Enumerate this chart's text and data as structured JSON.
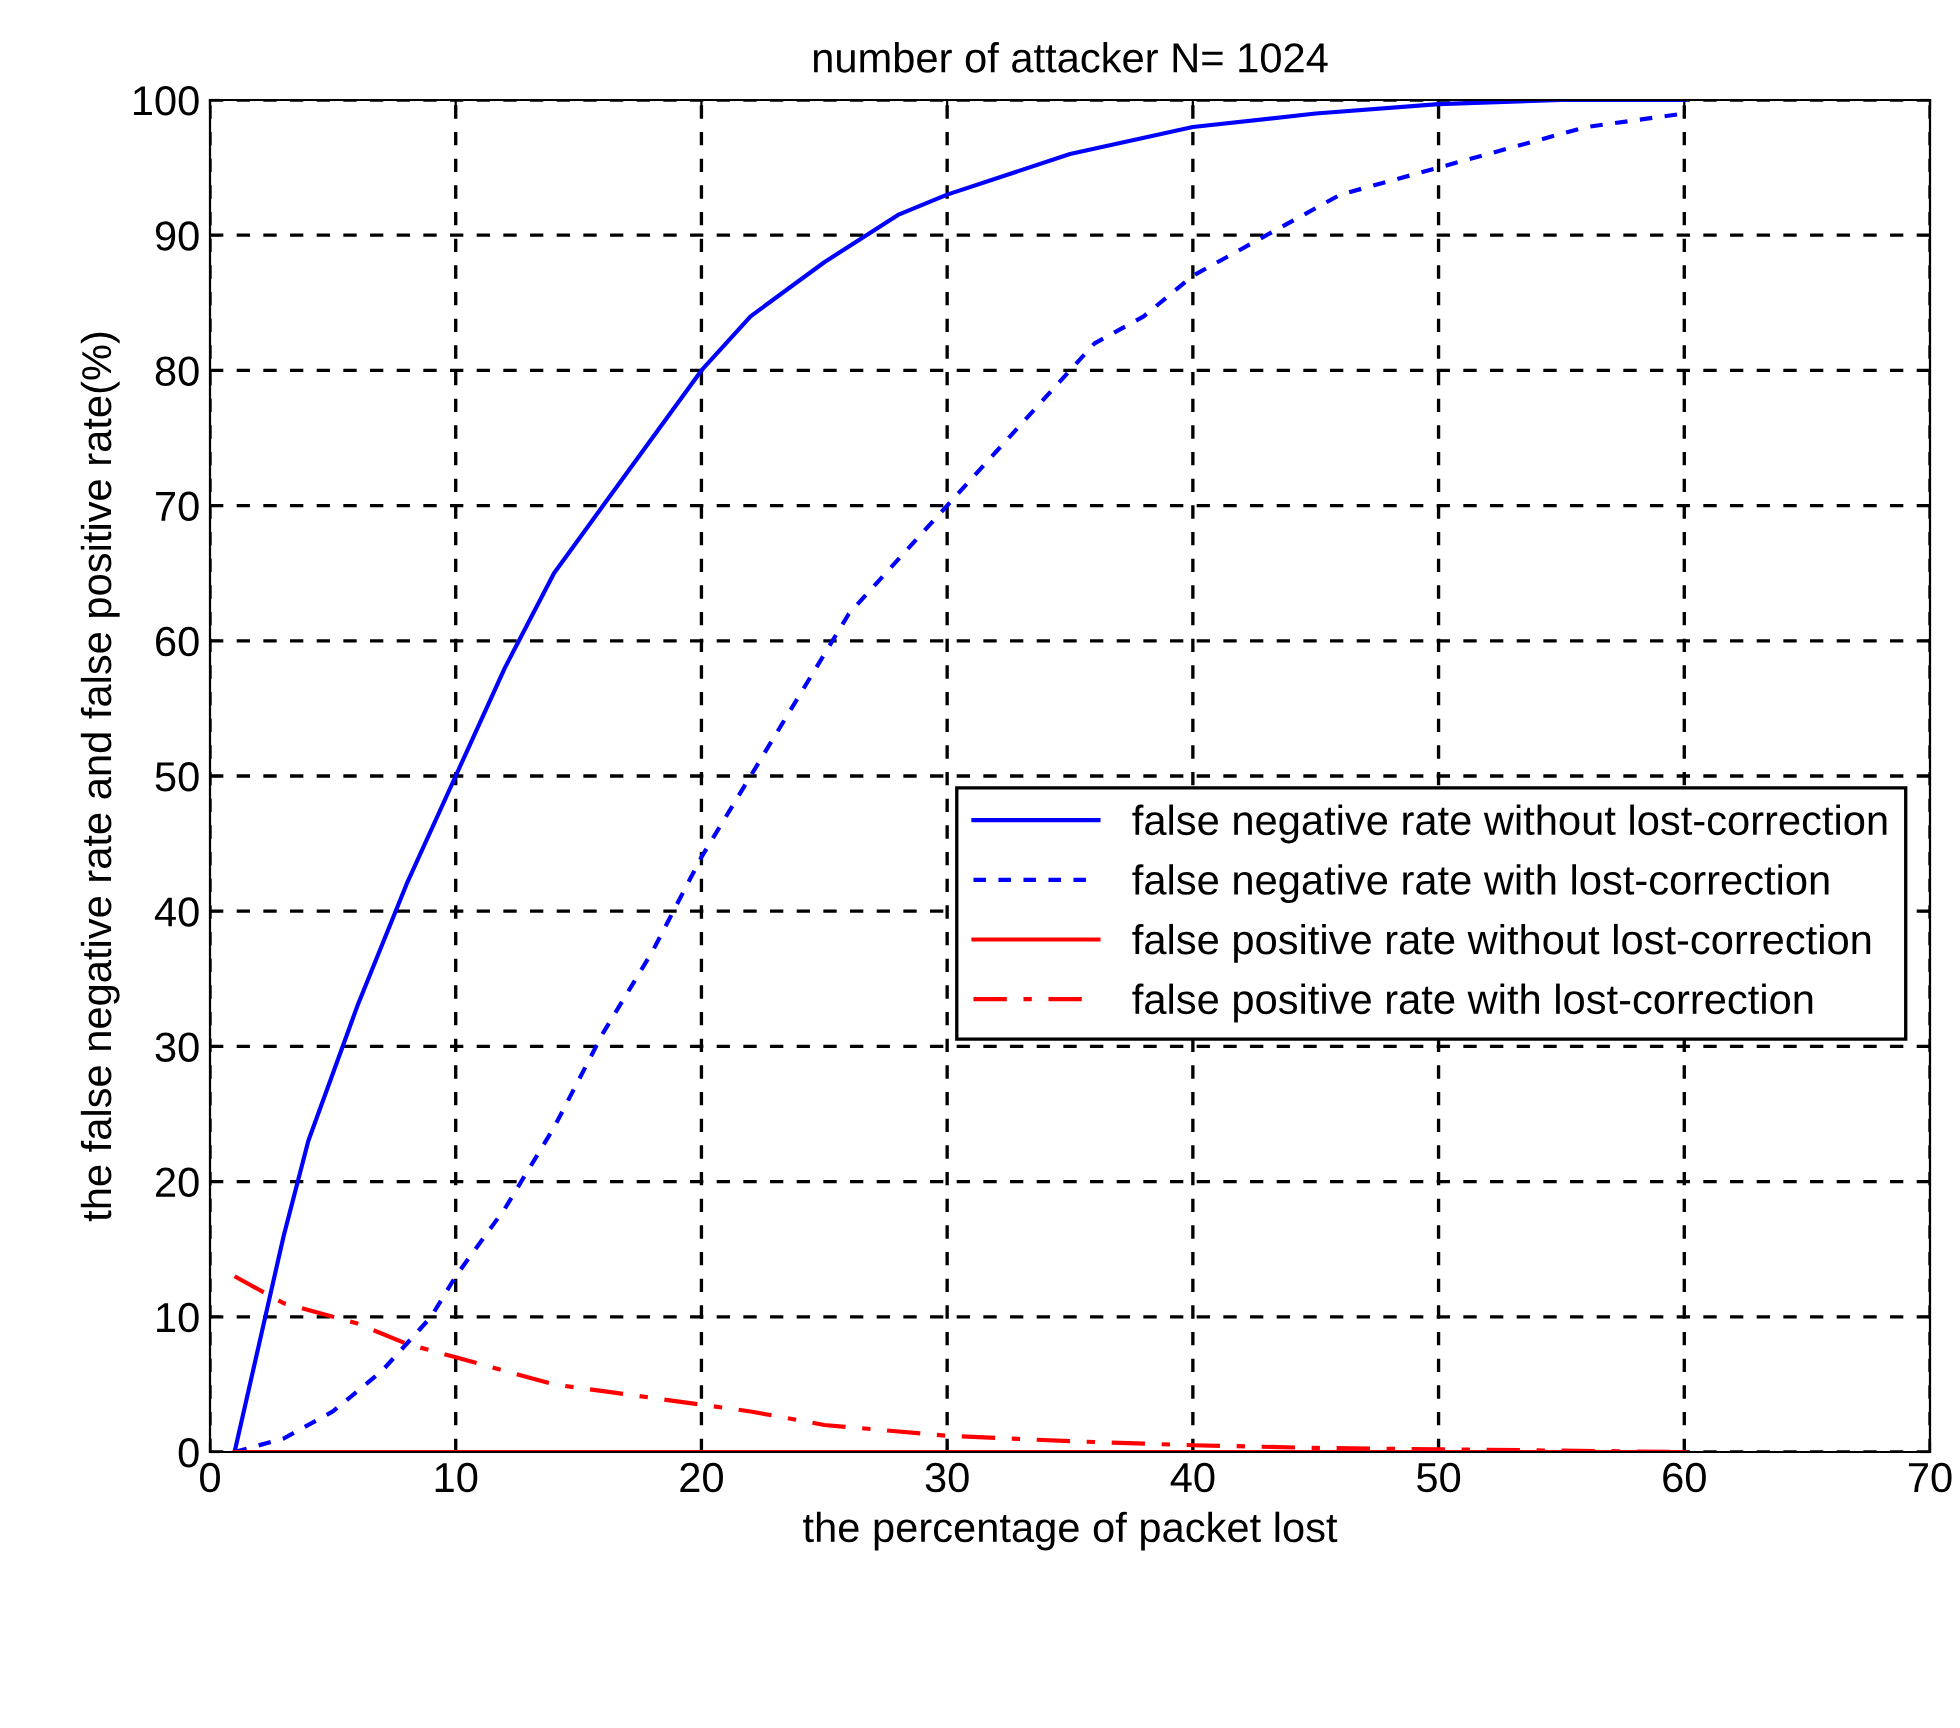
{
  "chart_data": {
    "type": "line",
    "title": "number of attacker N= 1024",
    "xlabel": "the percentage of packet lost",
    "ylabel": "the false negative rate and false positive rate(%)",
    "xlim": [
      0,
      70
    ],
    "xticks": [
      0,
      10,
      20,
      30,
      40,
      50,
      60,
      70
    ],
    "ylim": [
      0,
      100
    ],
    "yticks": [
      0,
      10,
      20,
      30,
      40,
      50,
      60,
      70,
      80,
      90,
      100
    ],
    "grid": true,
    "legend": "bottom right",
    "series": [
      {
        "name": "false negative rate without lost-correction",
        "color": "#0000ff",
        "line_style": "solid",
        "x": [
          1,
          2,
          3,
          4,
          5,
          6,
          8,
          10,
          12,
          14,
          16,
          18,
          20,
          22,
          25,
          28,
          30,
          35,
          40,
          45,
          50,
          55,
          60
        ],
        "values": [
          0,
          8,
          16,
          23,
          28,
          33,
          42,
          50,
          58,
          65,
          70,
          75,
          80,
          84,
          88,
          91.5,
          93,
          96,
          98,
          99,
          99.7,
          100,
          100
        ]
      },
      {
        "name": "false negative rate with lost-correction",
        "color": "#0000ff",
        "line_style": "dotted",
        "x": [
          1,
          3,
          5,
          7,
          9,
          10,
          12,
          14,
          16,
          18,
          20,
          22,
          24,
          26,
          28,
          30,
          32,
          34,
          36,
          38,
          40,
          42,
          44,
          46,
          48,
          50,
          52,
          54,
          56,
          58,
          60
        ],
        "values": [
          0,
          1,
          3,
          6,
          10,
          13,
          18,
          24,
          31,
          37,
          44,
          50,
          56,
          62,
          66,
          70,
          74,
          78,
          82,
          84,
          87,
          89,
          91,
          93,
          94,
          95,
          96,
          97,
          98,
          98.5,
          99
        ]
      },
      {
        "name": "false positive rate without lost-correction",
        "color": "#ff0000",
        "line_style": "solid",
        "x": [
          1,
          10,
          20,
          30,
          40,
          50,
          60
        ],
        "values": [
          0,
          0,
          0,
          0,
          0,
          0,
          0
        ]
      },
      {
        "name": "false positive rate with lost-correction",
        "color": "#ff0000",
        "line_style": "dashdot",
        "x": [
          1,
          2,
          3,
          4,
          5,
          6,
          8,
          10,
          12,
          14,
          16,
          18,
          20,
          22,
          25,
          30,
          35,
          40,
          45,
          50,
          55,
          60
        ],
        "values": [
          13,
          12,
          11,
          10.5,
          10,
          9.5,
          8,
          7,
          6,
          5,
          4.5,
          4,
          3.5,
          3,
          2,
          1.2,
          0.8,
          0.5,
          0.3,
          0.2,
          0.1,
          0
        ]
      }
    ]
  }
}
